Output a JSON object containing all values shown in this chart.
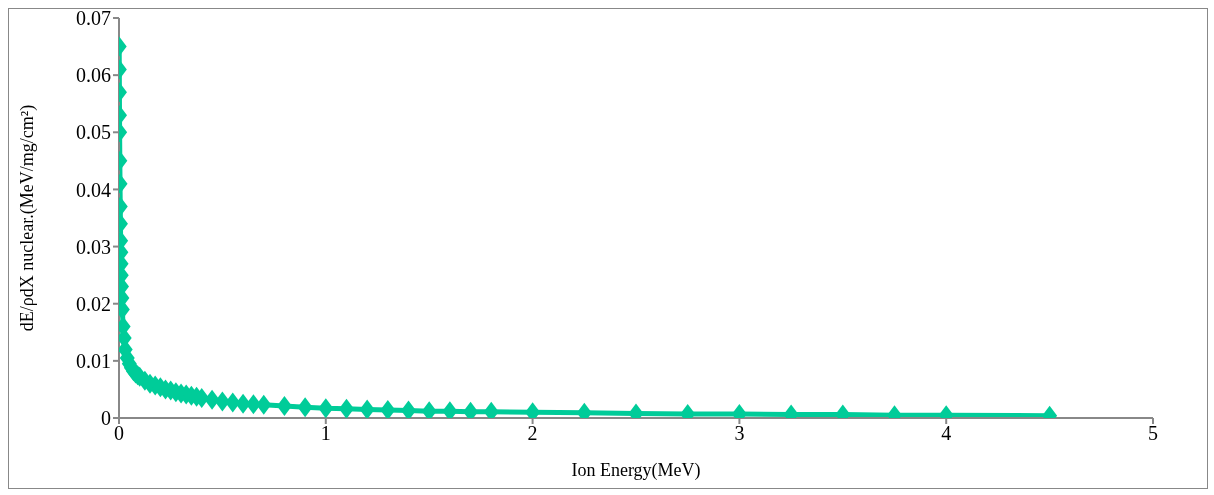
{
  "chart_data": {
    "type": "line",
    "xlabel": "Ion Energy(MeV)",
    "ylabel": "dE/ρdX nuclear.(MeV/mg/cm²)",
    "x": [
      0.001,
      0.0015,
      0.002,
      0.0025,
      0.003,
      0.004,
      0.005,
      0.006,
      0.007,
      0.008,
      0.009,
      0.01,
      0.011,
      0.012,
      0.014,
      0.016,
      0.02,
      0.025,
      0.03,
      0.04,
      0.05,
      0.06,
      0.07,
      0.08,
      0.09,
      0.1,
      0.125,
      0.15,
      0.175,
      0.2,
      0.225,
      0.25,
      0.275,
      0.3,
      0.325,
      0.35,
      0.375,
      0.4,
      0.45,
      0.5,
      0.55,
      0.6,
      0.65,
      0.7,
      0.8,
      0.9,
      1.0,
      1.1,
      1.2,
      1.3,
      1.4,
      1.5,
      1.6,
      1.7,
      1.8,
      2.0,
      2.25,
      2.5,
      2.75,
      3.0,
      3.25,
      3.5,
      3.75,
      4.0,
      4.5
    ],
    "series": [
      {
        "color": "#00cc99",
        "values": [
          0.065,
          0.061,
          0.057,
          0.053,
          0.05,
          0.045,
          0.041,
          0.037,
          0.034,
          0.031,
          0.029,
          0.027,
          0.025,
          0.023,
          0.021,
          0.019,
          0.016,
          0.014,
          0.012,
          0.0105,
          0.0095,
          0.0088,
          0.0082,
          0.0078,
          0.0075,
          0.0072,
          0.0065,
          0.006,
          0.0057,
          0.0054,
          0.005,
          0.0048,
          0.0045,
          0.0043,
          0.0041,
          0.0039,
          0.0037,
          0.0035,
          0.0032,
          0.0029,
          0.0027,
          0.0025,
          0.0024,
          0.0023,
          0.0021,
          0.0019,
          0.0017,
          0.0016,
          0.0015,
          0.0014,
          0.0013,
          0.0012,
          0.0012,
          0.0011,
          0.0011,
          0.001,
          0.0009,
          0.0008,
          0.0007,
          0.0007,
          0.0006,
          0.0006,
          0.0005,
          0.0005,
          0.0004
        ]
      }
    ],
    "xlim": [
      0,
      5
    ],
    "xticks": [
      0,
      1,
      2,
      3,
      4,
      5
    ],
    "ylim": [
      0,
      0.07
    ],
    "yticks": [
      0,
      0.01,
      0.02,
      0.03,
      0.04,
      0.05,
      0.06,
      0.07
    ],
    "grid": false,
    "marker": "diamond",
    "line_style": "solid"
  }
}
